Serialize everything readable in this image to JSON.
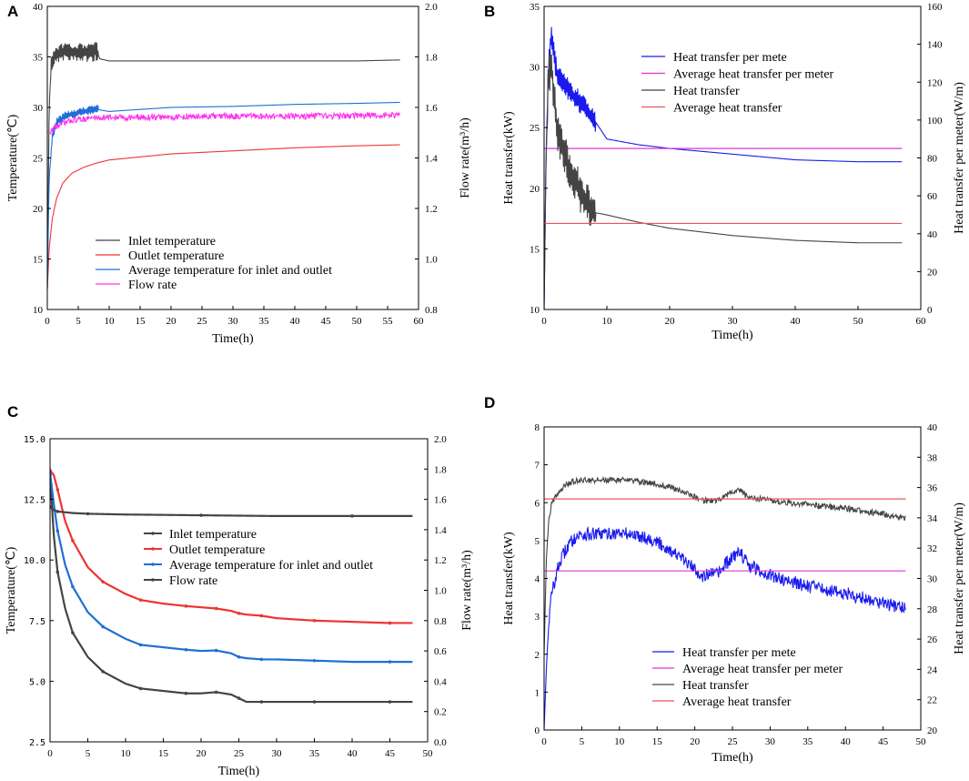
{
  "chart_data": [
    {
      "panel": "A",
      "type": "line",
      "xlabel": "Time(h)",
      "ylabel": "Temperature(℃)",
      "y2label": "Flow rate(m³/h)",
      "xlim": [
        0,
        60
      ],
      "ylim": [
        10,
        40
      ],
      "y2lim": [
        0.8,
        2.0
      ],
      "xticks": [
        "0",
        "5",
        "10",
        "15",
        "20",
        "25",
        "30",
        "35",
        "40",
        "45",
        "50",
        "55",
        "60"
      ],
      "yticks": [
        "10",
        "15",
        "20",
        "25",
        "30",
        "35",
        "40"
      ],
      "y2ticks": [
        "0.8",
        "1.0",
        "1.2",
        "1.4",
        "1.6",
        "1.8",
        "2.0"
      ],
      "legend_position": "lower-left",
      "series": [
        {
          "name": "Inlet temperature",
          "color": "#444444",
          "axis": "left",
          "x": [
            0,
            0.3,
            0.6,
            1,
            2,
            4,
            6,
            8,
            8.5,
            10,
            20,
            30,
            40,
            50,
            57
          ],
          "y": [
            12,
            30,
            34,
            35,
            35.5,
            35.5,
            35.5,
            35.5,
            34.8,
            34.6,
            34.6,
            34.6,
            34.6,
            34.6,
            34.7
          ],
          "noise_until": 8.2,
          "noise_amp": 2.0
        },
        {
          "name": "Outlet temperature",
          "color": "#ee3333",
          "axis": "left",
          "x": [
            0,
            0.3,
            0.8,
            1.5,
            2.5,
            4,
            6,
            8,
            10,
            15,
            20,
            30,
            40,
            50,
            57
          ],
          "y": [
            12,
            16,
            19,
            21,
            22.5,
            23.5,
            24.1,
            24.5,
            24.8,
            25.1,
            25.4,
            25.7,
            26.0,
            26.2,
            26.3
          ]
        },
        {
          "name": "Average temperature for inlet and outlet",
          "color": "#1f6fd6",
          "axis": "left",
          "x": [
            0,
            0.3,
            0.8,
            1.5,
            3,
            5,
            7,
            8,
            10,
            20,
            30,
            40,
            50,
            57
          ],
          "y": [
            12,
            23,
            27,
            28.5,
            29.2,
            29.5,
            29.7,
            29.8,
            29.6,
            30.0,
            30.1,
            30.3,
            30.4,
            30.5
          ],
          "noise_until": 8.2,
          "noise_amp": 0.9
        },
        {
          "name": "Flow rate",
          "color": "#ff33ee",
          "axis": "right",
          "x": [
            0,
            0.5,
            1,
            2,
            4,
            8,
            15,
            30,
            45,
            57
          ],
          "y": [
            1.5,
            1.5,
            1.52,
            1.53,
            1.55,
            1.56,
            1.56,
            1.565,
            1.565,
            1.57
          ],
          "noise_until": 57,
          "noise_amp": 0.012
        }
      ]
    },
    {
      "panel": "B",
      "type": "line",
      "xlabel": "Time(h)",
      "ylabel": "Heat transfer(kW)",
      "y2label": "Heat transfer per meter(W/m)",
      "xlim": [
        0,
        60
      ],
      "ylim": [
        10,
        35
      ],
      "y2lim": [
        0,
        160
      ],
      "xticks": [
        "0",
        "10",
        "20",
        "30",
        "40",
        "50",
        "60"
      ],
      "yticks": [
        "10",
        "15",
        "20",
        "25",
        "30",
        "35"
      ],
      "y2ticks": [
        "0",
        "20",
        "40",
        "60",
        "80",
        "100",
        "120",
        "140",
        "160"
      ],
      "legend_position": "upper-center",
      "series": [
        {
          "name": "Heat transfer per mete",
          "color": "#1a1aee",
          "axis": "right",
          "x": [
            0,
            0.3,
            0.7,
            1.2,
            2,
            4,
            6,
            8,
            10,
            15,
            20,
            30,
            40,
            50,
            57
          ],
          "y": [
            0,
            80,
            130,
            145,
            125,
            115,
            108,
            100,
            90,
            87,
            85,
            82,
            79,
            78,
            78
          ],
          "noise_until": 8.2,
          "noise_amp": 13
        },
        {
          "name": "Average heat transfer per meter",
          "color": "#dd33dd",
          "axis": "right",
          "x": [
            0,
            57
          ],
          "y": [
            85,
            85
          ]
        },
        {
          "name": "Heat transfer",
          "color": "#444444",
          "axis": "left",
          "x": [
            0,
            0.3,
            0.7,
            1.2,
            2,
            4,
            6,
            8,
            10,
            15,
            20,
            30,
            40,
            50,
            57
          ],
          "y": [
            10,
            22,
            29,
            30,
            25,
            21.5,
            19.5,
            18,
            17.8,
            17.2,
            16.7,
            16.1,
            15.7,
            15.5,
            15.5
          ],
          "noise_until": 8.2,
          "noise_amp": 3.5
        },
        {
          "name": "Average heat transfer",
          "color": "#ee5555",
          "axis": "left",
          "x": [
            0,
            57
          ],
          "y": [
            17.1,
            17.1
          ]
        }
      ]
    },
    {
      "panel": "C",
      "type": "line",
      "xlabel": "Time(h)",
      "ylabel": "Temperature(℃)",
      "y2label": "Flow rate(m³/h)",
      "xlim": [
        0,
        50
      ],
      "ylim": [
        2.5,
        15.0
      ],
      "y2lim": [
        0.0,
        2.0
      ],
      "xticks": [
        "0",
        "5",
        "10",
        "15",
        "20",
        "25",
        "30",
        "35",
        "40",
        "45",
        "50"
      ],
      "yticks": [
        "2.5",
        "5.0",
        "7.5",
        "10.0",
        "12.5",
        "15.0"
      ],
      "y2ticks": [
        "0.0",
        "0.2",
        "0.4",
        "0.6",
        "0.8",
        "1.0",
        "1.2",
        "1.4",
        "1.6",
        "1.8",
        "2.0"
      ],
      "legend_position": "center",
      "series": [
        {
          "name": "Inlet temperature",
          "color": "#444444",
          "axis": "left",
          "x": [
            0,
            0.5,
            1,
            2,
            3,
            5,
            7,
            10,
            12,
            15,
            18,
            20,
            22,
            24,
            25,
            26,
            28,
            30,
            35,
            40,
            45,
            48
          ],
          "y": [
            13.5,
            11,
            9.5,
            8,
            7,
            6,
            5.4,
            4.9,
            4.7,
            4.6,
            4.5,
            4.5,
            4.55,
            4.45,
            4.3,
            4.15,
            4.15,
            4.15,
            4.15,
            4.15,
            4.15,
            4.15
          ]
        },
        {
          "name": "Outlet temperature",
          "color": "#ee3333",
          "axis": "left",
          "x": [
            0,
            0.5,
            1,
            2,
            3,
            5,
            7,
            10,
            12,
            15,
            18,
            20,
            22,
            24,
            25,
            26,
            28,
            30,
            35,
            40,
            45,
            48
          ],
          "y": [
            13.7,
            13.5,
            12.9,
            11.6,
            10.8,
            9.7,
            9.1,
            8.6,
            8.35,
            8.2,
            8.1,
            8.05,
            8.0,
            7.9,
            7.8,
            7.75,
            7.7,
            7.6,
            7.5,
            7.45,
            7.4,
            7.4
          ]
        },
        {
          "name": "Average temperature for inlet and outlet",
          "color": "#1f6fd6",
          "axis": "left",
          "x": [
            0,
            0.5,
            1,
            2,
            3,
            5,
            7,
            10,
            12,
            15,
            18,
            20,
            22,
            24,
            25,
            26,
            28,
            30,
            35,
            40,
            45,
            48
          ],
          "y": [
            13.6,
            12.3,
            11.2,
            9.8,
            8.9,
            7.85,
            7.25,
            6.75,
            6.5,
            6.4,
            6.3,
            6.25,
            6.27,
            6.15,
            6.0,
            5.95,
            5.9,
            5.9,
            5.85,
            5.8,
            5.8,
            5.8
          ]
        },
        {
          "name": "Flow rate",
          "color": "#444444",
          "axis": "right",
          "x": [
            0,
            0.5,
            1,
            3,
            5,
            10,
            20,
            30,
            40,
            48
          ],
          "y": [
            1.55,
            1.53,
            1.52,
            1.51,
            1.505,
            1.5,
            1.495,
            1.49,
            1.49,
            1.49
          ]
        }
      ]
    },
    {
      "panel": "D",
      "type": "line",
      "xlabel": "Time(h)",
      "ylabel": "Heat transfer(kW)",
      "y2label": "Heat transfer per meter(W/m)",
      "xlim": [
        0,
        50
      ],
      "ylim": [
        0,
        8
      ],
      "y2lim": [
        20,
        40
      ],
      "xticks": [
        "0",
        "5",
        "10",
        "15",
        "20",
        "25",
        "30",
        "35",
        "40",
        "45",
        "50"
      ],
      "yticks": [
        "0",
        "1",
        "2",
        "3",
        "4",
        "5",
        "6",
        "7",
        "8"
      ],
      "y2ticks": [
        "20",
        "22",
        "24",
        "26",
        "28",
        "30",
        "32",
        "34",
        "36",
        "38",
        "40"
      ],
      "legend_position": "lower-center",
      "series": [
        {
          "name": "Heat transfer per mete",
          "color": "#1a1aee",
          "axis": "right",
          "x": [
            0,
            0.3,
            0.6,
            1,
            2,
            3,
            4,
            5,
            7,
            10,
            13,
            15,
            17,
            19,
            21,
            23,
            25,
            26,
            27,
            30,
            35,
            40,
            45,
            48
          ],
          "y": [
            20,
            24,
            27,
            29,
            31,
            32,
            32.7,
            32.9,
            32.9,
            33.0,
            32.8,
            32.4,
            31.8,
            31.0,
            30.2,
            30.3,
            31.4,
            31.8,
            30.9,
            30.2,
            29.5,
            29.0,
            28.4,
            28.0
          ],
          "noise_until": 48,
          "noise_amp": 0.45
        },
        {
          "name": "Average heat transfer per meter",
          "color": "#dd33dd",
          "axis": "right",
          "x": [
            0,
            48
          ],
          "y": [
            30.5,
            30.5
          ]
        },
        {
          "name": "Heat transfer",
          "color": "#444444",
          "axis": "left",
          "x": [
            0,
            0.3,
            0.6,
            1,
            2,
            3,
            4,
            5,
            8,
            10,
            13,
            15,
            17,
            19,
            21,
            23,
            25,
            26,
            27,
            30,
            35,
            40,
            45,
            48
          ],
          "y": [
            2,
            4.5,
            5.5,
            6.0,
            6.3,
            6.5,
            6.55,
            6.6,
            6.6,
            6.6,
            6.55,
            6.5,
            6.4,
            6.25,
            6.05,
            6.05,
            6.3,
            6.35,
            6.15,
            6.05,
            5.95,
            5.85,
            5.7,
            5.6
          ],
          "noise_until": 48,
          "noise_amp": 0.08
        },
        {
          "name": "Average heat transfer",
          "color": "#ee5555",
          "axis": "left",
          "x": [
            0,
            48
          ],
          "y": [
            6.1,
            6.1
          ]
        }
      ]
    }
  ]
}
